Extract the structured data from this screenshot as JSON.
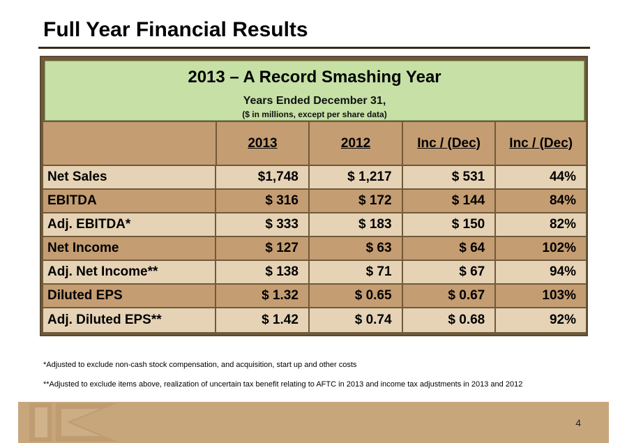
{
  "page_title": "Full Year Financial Results",
  "table": {
    "title": "2013 – A Record Smashing Year",
    "subtitle": "Years Ended December 31,",
    "note": "($ in millions, except per share data)",
    "columns": [
      "",
      "2013",
      "2012",
      "Inc / (Dec)",
      "Inc / (Dec)"
    ],
    "rows": [
      {
        "label": "Net Sales",
        "v2013": "$1,748",
        "v2012": "$ 1,217",
        "inc": "$     531",
        "pct": "44%"
      },
      {
        "label": "EBITDA",
        "v2013": "$   316",
        "v2012": "$     172",
        "inc": "$     144",
        "pct": "84%"
      },
      {
        "label": "Adj. EBITDA*",
        "v2013": "$  333",
        "v2012": "$     183",
        "inc": "$     150",
        "pct": "82%"
      },
      {
        "label": "Net Income",
        "v2013": "$  127",
        "v2012": "$       63",
        "inc": "$       64",
        "pct": "102%"
      },
      {
        "label": "Adj. Net Income**",
        "v2013": "$  138",
        "v2012": "$       71",
        "inc": "$       67",
        "pct": "94%"
      },
      {
        "label": "Diluted EPS",
        "v2013": "$ 1.32",
        "v2012": "$   0.65",
        "inc": "$   0.67",
        "pct": "103%"
      },
      {
        "label": "Adj. Diluted EPS**",
        "v2013": "$ 1.42",
        "v2012": "$   0.74",
        "inc": "$   0.68",
        "pct": "92%"
      }
    ]
  },
  "footnotes": {
    "note1": "*Adjusted to exclude non-cash stock compensation, and acquisition, start up and other costs",
    "note2": "**Adjusted to exclude items above, realization of uncertain tax benefit relating to AFTC in 2013 and income tax adjustments in 2013 and 2012"
  },
  "footer": {
    "page_number": "4",
    "logo_icon": "k-logo-icon"
  },
  "colors": {
    "header_green": "#c6e0a6",
    "row_light": "#e6d3b6",
    "row_dark": "#c59d72",
    "frame": "#6f5a3a",
    "footer_band": "#c8a67c"
  }
}
